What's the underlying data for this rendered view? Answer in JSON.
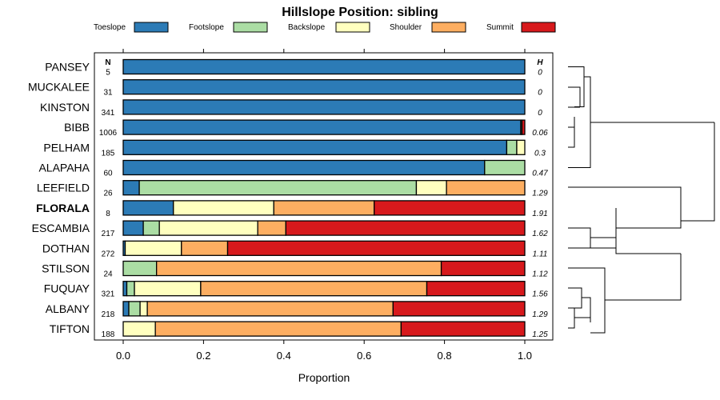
{
  "chart_data": {
    "type": "bar",
    "stacked": "horizontal-proportion",
    "title": "Hillslope Position: sibling",
    "xlabel": "Proportion",
    "ylabel": "",
    "xlim": [
      0,
      1
    ],
    "xticks": [
      "0.0",
      "0.2",
      "0.4",
      "0.6",
      "0.8",
      "1.0"
    ],
    "n_header": "N",
    "h_header": "H",
    "legend": [
      {
        "name": "Toeslope",
        "color": "#2c7bb6"
      },
      {
        "name": "Footslope",
        "color": "#abdda4"
      },
      {
        "name": "Backslope",
        "color": "#ffffbf"
      },
      {
        "name": "Shoulder",
        "color": "#fdae61"
      },
      {
        "name": "Summit",
        "color": "#d7191c"
      }
    ],
    "rows": [
      {
        "name": "PANSEY",
        "bold": false,
        "n": "5",
        "h": "0",
        "values": [
          1.0,
          0,
          0,
          0,
          0
        ]
      },
      {
        "name": "MUCKALEE",
        "bold": false,
        "n": "31",
        "h": "0",
        "values": [
          1.0,
          0,
          0,
          0,
          0
        ]
      },
      {
        "name": "KINSTON",
        "bold": false,
        "n": "341",
        "h": "0",
        "values": [
          1.0,
          0,
          0,
          0,
          0
        ]
      },
      {
        "name": "BIBB",
        "bold": false,
        "n": "1006",
        "h": "0.06",
        "values": [
          0.99,
          0.003,
          0,
          0,
          0.007
        ]
      },
      {
        "name": "PELHAM",
        "bold": false,
        "n": "185",
        "h": "0.3",
        "values": [
          0.955,
          0.025,
          0.02,
          0,
          0
        ]
      },
      {
        "name": "ALAPAHA",
        "bold": false,
        "n": "60",
        "h": "0.47",
        "values": [
          0.9,
          0.1,
          0,
          0,
          0
        ]
      },
      {
        "name": "LEEFIELD",
        "bold": false,
        "n": "26",
        "h": "1.29",
        "values": [
          0.04,
          0.69,
          0.075,
          0.195,
          0
        ]
      },
      {
        "name": "FLORALA",
        "bold": true,
        "n": "8",
        "h": "1.91",
        "values": [
          0.125,
          0.0,
          0.25,
          0.25,
          0.375
        ]
      },
      {
        "name": "ESCAMBIA",
        "bold": false,
        "n": "217",
        "h": "1.62",
        "values": [
          0.05,
          0.04,
          0.245,
          0.07,
          0.595
        ]
      },
      {
        "name": "DOTHAN",
        "bold": false,
        "n": "272",
        "h": "1.11",
        "values": [
          0.005,
          0.0,
          0.14,
          0.115,
          0.74
        ]
      },
      {
        "name": "STILSON",
        "bold": false,
        "n": "24",
        "h": "1.12",
        "values": [
          0.0,
          0.083,
          0.0,
          0.709,
          0.208
        ]
      },
      {
        "name": "FUQUAY",
        "bold": false,
        "n": "321",
        "h": "1.56",
        "values": [
          0.009,
          0.019,
          0.165,
          0.563,
          0.244
        ]
      },
      {
        "name": "ALBANY",
        "bold": false,
        "n": "218",
        "h": "1.29",
        "values": [
          0.014,
          0.028,
          0.018,
          0.612,
          0.328
        ]
      },
      {
        "name": "TIFTON",
        "bold": false,
        "n": "188",
        "h": "1.25",
        "values": [
          0.0,
          0.0,
          0.08,
          0.612,
          0.308
        ]
      }
    ]
  }
}
